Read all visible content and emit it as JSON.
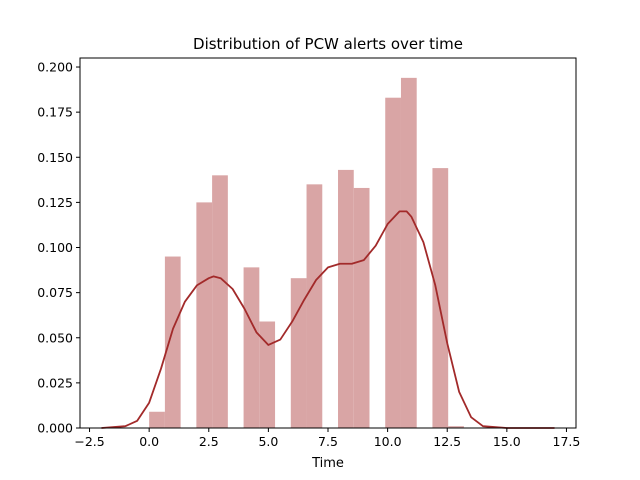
{
  "chart_data": {
    "type": "bar",
    "title": "Distribution of PCW alerts over time",
    "xlabel": "Time",
    "ylabel": "",
    "xlim": [
      -2.9,
      17.9
    ],
    "ylim": [
      0,
      0.205
    ],
    "x_ticks": [
      -2.5,
      0.0,
      2.5,
      5.0,
      7.5,
      10.0,
      12.5,
      15.0,
      17.5
    ],
    "x_tick_labels": [
      "−2.5",
      "0.0",
      "2.5",
      "5.0",
      "7.5",
      "10.0",
      "12.5",
      "15.0",
      "17.5"
    ],
    "y_ticks": [
      0,
      0.025,
      0.05,
      0.075,
      0.1,
      0.125,
      0.15,
      0.175,
      0.2
    ],
    "y_tick_labels": [
      "0.000",
      "0.025",
      "0.050",
      "0.075",
      "0.100",
      "0.125",
      "0.150",
      "0.175",
      "0.200"
    ],
    "grid": false,
    "bar_color": "#d9a5a5",
    "line_color": "#a22a2a",
    "histogram": {
      "bin_width": 0.66,
      "bins": [
        {
          "x_start": 0.0,
          "value": 0.009
        },
        {
          "x_start": 0.66,
          "value": 0.095
        },
        {
          "x_start": 1.98,
          "value": 0.125
        },
        {
          "x_start": 2.64,
          "value": 0.14
        },
        {
          "x_start": 3.96,
          "value": 0.089
        },
        {
          "x_start": 4.62,
          "value": 0.059
        },
        {
          "x_start": 5.94,
          "value": 0.083
        },
        {
          "x_start": 6.6,
          "value": 0.135
        },
        {
          "x_start": 7.92,
          "value": 0.143
        },
        {
          "x_start": 8.58,
          "value": 0.133
        },
        {
          "x_start": 9.9,
          "value": 0.183
        },
        {
          "x_start": 10.56,
          "value": 0.194
        },
        {
          "x_start": 11.88,
          "value": 0.144
        },
        {
          "x_start": 12.54,
          "value": 0.001
        }
      ]
    },
    "kde": {
      "x": [
        -2.0,
        -1.0,
        -0.5,
        0.0,
        0.5,
        1.0,
        1.5,
        2.0,
        2.5,
        2.7,
        3.0,
        3.5,
        4.0,
        4.5,
        5.0,
        5.5,
        6.0,
        6.5,
        7.0,
        7.5,
        8.0,
        8.5,
        9.0,
        9.5,
        10.0,
        10.5,
        10.8,
        11.0,
        11.5,
        12.0,
        12.5,
        13.0,
        13.5,
        14.0,
        15.0,
        16.0,
        17.0
      ],
      "y": [
        0.0,
        0.001,
        0.004,
        0.014,
        0.033,
        0.055,
        0.07,
        0.079,
        0.083,
        0.084,
        0.083,
        0.077,
        0.066,
        0.053,
        0.046,
        0.049,
        0.059,
        0.071,
        0.082,
        0.089,
        0.091,
        0.091,
        0.093,
        0.101,
        0.113,
        0.12,
        0.12,
        0.117,
        0.103,
        0.079,
        0.047,
        0.02,
        0.006,
        0.001,
        0.0,
        0.0,
        0.0
      ]
    }
  }
}
